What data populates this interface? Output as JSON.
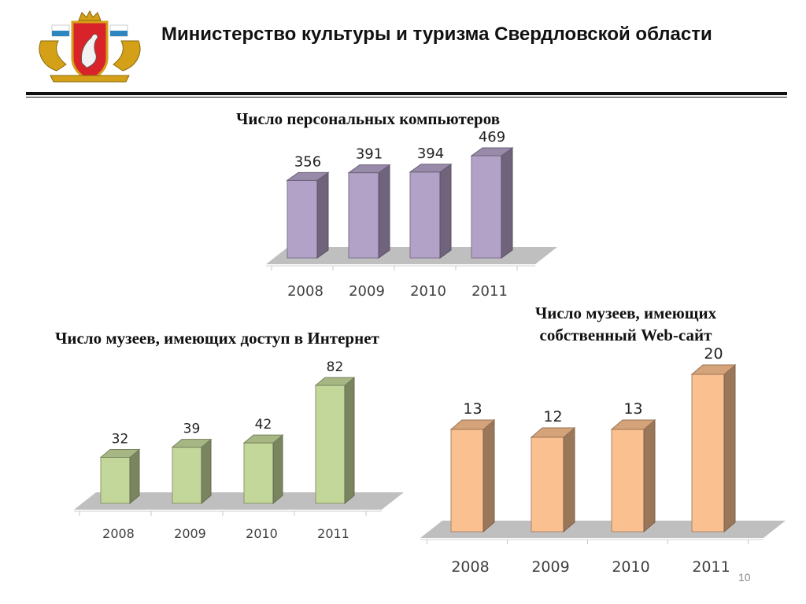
{
  "header": {
    "title": "Министерство культуры  и туризма Свердловской области"
  },
  "page_number": "10",
  "colors": {
    "purple": "#B3A2C7",
    "green": "#C4D79B",
    "orange": "#FAC090",
    "floor": "#BFBFBF",
    "text": "#404040"
  },
  "chart_data": [
    {
      "type": "bar",
      "title": "Число персональных компьютеров",
      "categories": [
        "2008",
        "2009",
        "2010",
        "2011"
      ],
      "values": [
        356,
        391,
        394,
        469
      ],
      "color": "purple"
    },
    {
      "type": "bar",
      "title": "Число музеев, имеющих доступ в Интернет",
      "categories": [
        "2008",
        "2009",
        "2010",
        "2011"
      ],
      "values": [
        32,
        39,
        42,
        82
      ],
      "color": "green"
    },
    {
      "type": "bar",
      "title_lines": [
        "Число музеев, имеющих",
        "собственный Web-сайт"
      ],
      "categories": [
        "2008",
        "2009",
        "2010",
        "2011"
      ],
      "values": [
        13,
        12,
        13,
        20
      ],
      "color": "orange"
    }
  ]
}
